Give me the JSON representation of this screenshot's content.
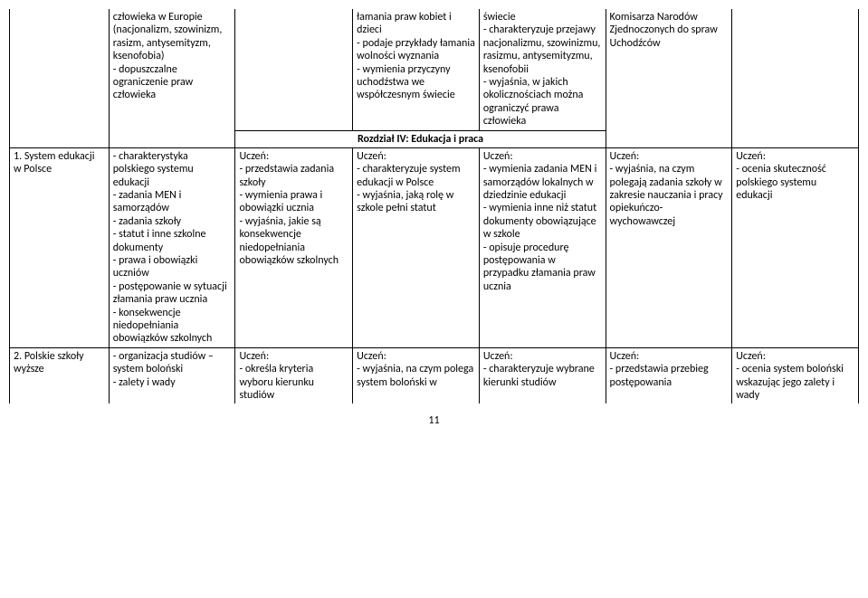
{
  "page_number": "11",
  "section_title": "Rozdział IV: Edukacja i praca",
  "row0": {
    "c1": "",
    "c2": "człowieka w Europie (nacjonalizm, szowinizm, rasizm, antysemityzm, ksenofobia)\n- dopuszczalne ograniczenie praw człowieka",
    "c3": "",
    "c4": "łamania praw kobiet i dzieci\n- podaje przykłady łamania wolności wyznania\n- wymienia przyczyny uchodźstwa we współczesnym świecie",
    "c5": "świecie\n- charakteryzuje przejawy nacjonalizmu, szowinizmu, rasizmu, antysemityzmu, ksenofobii\n- wyjaśnia, w jakich okolicznościach można ograniczyć prawa człowieka",
    "c6": "Komisarza Narodów Zjednoczonych do spraw Uchodźców",
    "c7": ""
  },
  "row1": {
    "c1": "1. System edukacji w Polsce",
    "c2": "- charakterystyka polskiego systemu edukacji\n- zadania MEN i samorządów\n- zadania szkoły\n- statut i inne szkolne dokumenty\n- prawa i obowiązki uczniów\n- postępowanie w sytuacji złamania praw ucznia\n- konsekwencje niedopełniania obowiązków szkolnych",
    "c3": "Uczeń:\n- przedstawia zadania szkoły\n- wymienia prawa i obowiązki ucznia\n- wyjaśnia, jakie są konsekwencje niedopełniania obowiązków szkolnych",
    "c4": "Uczeń:\n- charakteryzuje system edukacji w Polsce\n- wyjaśnia, jaką rolę w szkole pełni statut",
    "c5": "Uczeń:\n- wymienia zadania MEN i samorządów lokalnych w dziedzinie edukacji\n- wymienia inne niż statut dokumenty obowiązujące w szkole\n- opisuje procedurę postępowania w przypadku złamania praw ucznia",
    "c6": "Uczeń:\n- wyjaśnia, na czym polegają zadania szkoły w zakresie nauczania i pracy opiekuńczo-wychowawczej",
    "c7": "Uczeń:\n- ocenia skuteczność polskiego systemu edukacji"
  },
  "row2": {
    "c1": "2. Polskie szkoły wyższe",
    "c2": "- organizacja studiów – system boloński\n- zalety i wady",
    "c3": "Uczeń:\n- określa kryteria wyboru kierunku studiów",
    "c4": "Uczeń:\n- wyjaśnia, na czym polega system boloński w",
    "c5": "Uczeń:\n- charakteryzuje wybrane kierunki studiów",
    "c6": "Uczeń:\n- przedstawia przebieg postępowania",
    "c7": "Uczeń:\n- ocenia system boloński wskazując jego zalety i wady"
  }
}
